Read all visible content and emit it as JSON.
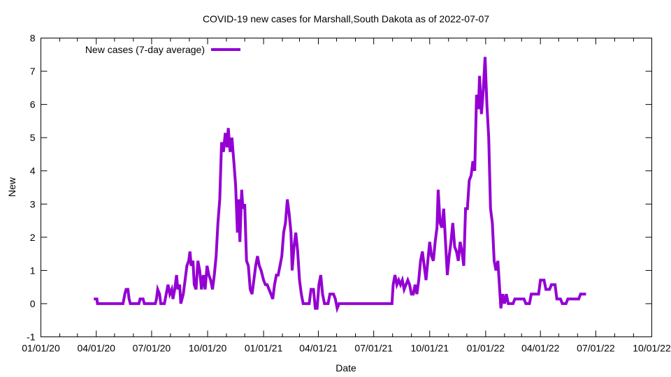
{
  "chart_data": {
    "type": "line",
    "title": "COVID-19 new cases for Marshall,South Dakota as of 2022-07-07",
    "xlabel": "Date",
    "ylabel": "New",
    "xlim": [
      "2020-01-01",
      "2022-10-01"
    ],
    "ylim": [
      -1,
      8
    ],
    "grid": false,
    "legend_position": "top-left",
    "y_ticks": [
      "-1",
      "0",
      "1",
      "2",
      "3",
      "4",
      "5",
      "6",
      "7",
      "8"
    ],
    "x_ticks": [
      {
        "date": "2020-01-01",
        "label": "01/01/20"
      },
      {
        "date": "2020-04-01",
        "label": "04/01/20"
      },
      {
        "date": "2020-07-01",
        "label": "07/01/20"
      },
      {
        "date": "2020-10-01",
        "label": "10/01/20"
      },
      {
        "date": "2021-01-01",
        "label": "01/01/21"
      },
      {
        "date": "2021-04-01",
        "label": "04/01/21"
      },
      {
        "date": "2021-07-01",
        "label": "07/01/21"
      },
      {
        "date": "2021-10-01",
        "label": "10/01/21"
      },
      {
        "date": "2022-01-01",
        "label": "01/01/22"
      },
      {
        "date": "2022-04-01",
        "label": "04/01/22"
      },
      {
        "date": "2022-07-01",
        "label": "07/01/22"
      },
      {
        "date": "2022-10-01",
        "label": "10/01/22"
      }
    ],
    "series": [
      {
        "name": "New cases (7-day average)",
        "color": "#9400d3",
        "points": [
          [
            "2020-03-28",
            0.14
          ],
          [
            "2020-04-02",
            0.14
          ],
          [
            "2020-04-03",
            0.0
          ],
          [
            "2020-05-15",
            0.0
          ],
          [
            "2020-05-18",
            0.29
          ],
          [
            "2020-05-20",
            0.43
          ],
          [
            "2020-05-23",
            0.43
          ],
          [
            "2020-05-25",
            0.14
          ],
          [
            "2020-05-27",
            0.0
          ],
          [
            "2020-06-10",
            0.0
          ],
          [
            "2020-06-12",
            0.14
          ],
          [
            "2020-06-17",
            0.14
          ],
          [
            "2020-06-19",
            0.0
          ],
          [
            "2020-07-07",
            0.0
          ],
          [
            "2020-07-09",
            0.14
          ],
          [
            "2020-07-11",
            0.43
          ],
          [
            "2020-07-14",
            0.29
          ],
          [
            "2020-07-16",
            0.0
          ],
          [
            "2020-07-22",
            0.0
          ],
          [
            "2020-07-25",
            0.29
          ],
          [
            "2020-07-28",
            0.57
          ],
          [
            "2020-07-31",
            0.29
          ],
          [
            "2020-08-03",
            0.43
          ],
          [
            "2020-08-05",
            0.14
          ],
          [
            "2020-08-08",
            0.43
          ],
          [
            "2020-08-11",
            0.86
          ],
          [
            "2020-08-13",
            0.43
          ],
          [
            "2020-08-16",
            0.57
          ],
          [
            "2020-08-18",
            0.0
          ],
          [
            "2020-08-22",
            0.29
          ],
          [
            "2020-08-25",
            0.71
          ],
          [
            "2020-08-28",
            1.14
          ],
          [
            "2020-08-31",
            1.29
          ],
          [
            "2020-09-02",
            1.57
          ],
          [
            "2020-09-04",
            1.14
          ],
          [
            "2020-09-07",
            1.29
          ],
          [
            "2020-09-09",
            0.57
          ],
          [
            "2020-09-12",
            0.43
          ],
          [
            "2020-09-15",
            1.29
          ],
          [
            "2020-09-18",
            1.0
          ],
          [
            "2020-09-21",
            0.43
          ],
          [
            "2020-09-24",
            0.86
          ],
          [
            "2020-09-27",
            0.43
          ],
          [
            "2020-09-30",
            1.14
          ],
          [
            "2020-10-03",
            0.86
          ],
          [
            "2020-10-06",
            0.71
          ],
          [
            "2020-10-09",
            0.43
          ],
          [
            "2020-10-12",
            0.86
          ],
          [
            "2020-10-15",
            1.43
          ],
          [
            "2020-10-18",
            2.43
          ],
          [
            "2020-10-21",
            3.14
          ],
          [
            "2020-10-24",
            4.86
          ],
          [
            "2020-10-27",
            4.57
          ],
          [
            "2020-10-30",
            5.14
          ],
          [
            "2020-11-02",
            4.71
          ],
          [
            "2020-11-04",
            5.29
          ],
          [
            "2020-11-07",
            4.57
          ],
          [
            "2020-11-10",
            5.0
          ],
          [
            "2020-11-13",
            4.29
          ],
          [
            "2020-11-16",
            3.57
          ],
          [
            "2020-11-19",
            2.14
          ],
          [
            "2020-11-21",
            3.14
          ],
          [
            "2020-11-23",
            1.86
          ],
          [
            "2020-11-26",
            3.43
          ],
          [
            "2020-11-28",
            2.86
          ],
          [
            "2020-12-01",
            3.0
          ],
          [
            "2020-12-04",
            1.29
          ],
          [
            "2020-12-07",
            1.14
          ],
          [
            "2020-12-10",
            0.43
          ],
          [
            "2020-12-13",
            0.29
          ],
          [
            "2020-12-16",
            0.71
          ],
          [
            "2020-12-19",
            1.14
          ],
          [
            "2020-12-22",
            1.43
          ],
          [
            "2020-12-25",
            1.14
          ],
          [
            "2020-12-28",
            1.0
          ],
          [
            "2021-01-01",
            0.71
          ],
          [
            "2021-01-04",
            0.57
          ],
          [
            "2021-01-07",
            0.57
          ],
          [
            "2021-01-10",
            0.43
          ],
          [
            "2021-01-13",
            0.29
          ],
          [
            "2021-01-16",
            0.14
          ],
          [
            "2021-01-19",
            0.57
          ],
          [
            "2021-01-22",
            0.86
          ],
          [
            "2021-01-25",
            0.86
          ],
          [
            "2021-01-28",
            1.14
          ],
          [
            "2021-01-31",
            1.43
          ],
          [
            "2021-02-03",
            2.14
          ],
          [
            "2021-02-06",
            2.43
          ],
          [
            "2021-02-09",
            3.14
          ],
          [
            "2021-02-12",
            2.71
          ],
          [
            "2021-02-15",
            2.14
          ],
          [
            "2021-02-17",
            1.0
          ],
          [
            "2021-02-20",
            1.71
          ],
          [
            "2021-02-23",
            2.14
          ],
          [
            "2021-02-26",
            1.57
          ],
          [
            "2021-03-01",
            0.71
          ],
          [
            "2021-03-04",
            0.29
          ],
          [
            "2021-03-07",
            0.0
          ],
          [
            "2021-03-17",
            0.0
          ],
          [
            "2021-03-20",
            0.43
          ],
          [
            "2021-03-24",
            0.43
          ],
          [
            "2021-03-27",
            -0.14
          ],
          [
            "2021-03-30",
            -0.14
          ],
          [
            "2021-04-02",
            0.57
          ],
          [
            "2021-04-05",
            0.86
          ],
          [
            "2021-04-08",
            0.29
          ],
          [
            "2021-04-11",
            0.0
          ],
          [
            "2021-04-17",
            0.0
          ],
          [
            "2021-04-20",
            0.29
          ],
          [
            "2021-04-26",
            0.29
          ],
          [
            "2021-04-29",
            0.14
          ],
          [
            "2021-05-02",
            -0.14
          ],
          [
            "2021-05-05",
            0.0
          ],
          [
            "2021-07-31",
            0.0
          ],
          [
            "2021-08-02",
            0.57
          ],
          [
            "2021-08-05",
            0.86
          ],
          [
            "2021-08-08",
            0.57
          ],
          [
            "2021-08-11",
            0.71
          ],
          [
            "2021-08-14",
            0.57
          ],
          [
            "2021-08-17",
            0.71
          ],
          [
            "2021-08-20",
            0.43
          ],
          [
            "2021-08-23",
            0.57
          ],
          [
            "2021-08-26",
            0.71
          ],
          [
            "2021-08-29",
            0.57
          ],
          [
            "2021-09-01",
            0.29
          ],
          [
            "2021-09-04",
            0.29
          ],
          [
            "2021-09-07",
            0.57
          ],
          [
            "2021-09-10",
            0.29
          ],
          [
            "2021-09-13",
            0.71
          ],
          [
            "2021-09-16",
            1.29
          ],
          [
            "2021-09-19",
            1.57
          ],
          [
            "2021-09-22",
            1.14
          ],
          [
            "2021-09-25",
            0.71
          ],
          [
            "2021-09-28",
            1.29
          ],
          [
            "2021-10-01",
            1.86
          ],
          [
            "2021-10-04",
            1.43
          ],
          [
            "2021-10-07",
            1.29
          ],
          [
            "2021-10-10",
            1.86
          ],
          [
            "2021-10-13",
            2.29
          ],
          [
            "2021-10-15",
            3.43
          ],
          [
            "2021-10-18",
            2.43
          ],
          [
            "2021-10-21",
            2.29
          ],
          [
            "2021-10-24",
            2.86
          ],
          [
            "2021-10-27",
            1.86
          ],
          [
            "2021-10-30",
            0.86
          ],
          [
            "2021-11-02",
            1.43
          ],
          [
            "2021-11-05",
            1.86
          ],
          [
            "2021-11-08",
            2.43
          ],
          [
            "2021-11-11",
            1.71
          ],
          [
            "2021-11-14",
            1.57
          ],
          [
            "2021-11-17",
            1.29
          ],
          [
            "2021-11-20",
            1.86
          ],
          [
            "2021-11-23",
            1.57
          ],
          [
            "2021-11-26",
            1.14
          ],
          [
            "2021-11-29",
            2.86
          ],
          [
            "2021-12-02",
            2.86
          ],
          [
            "2021-12-05",
            3.71
          ],
          [
            "2021-12-08",
            3.86
          ],
          [
            "2021-12-11",
            4.29
          ],
          [
            "2021-12-14",
            4.0
          ],
          [
            "2021-12-17",
            6.29
          ],
          [
            "2021-12-20",
            5.86
          ],
          [
            "2021-12-22",
            6.86
          ],
          [
            "2021-12-25",
            5.71
          ],
          [
            "2021-12-28",
            6.43
          ],
          [
            "2021-12-31",
            7.43
          ],
          [
            "2022-01-03",
            6.0
          ],
          [
            "2022-01-06",
            5.0
          ],
          [
            "2022-01-09",
            2.86
          ],
          [
            "2022-01-12",
            2.43
          ],
          [
            "2022-01-15",
            1.29
          ],
          [
            "2022-01-18",
            1.0
          ],
          [
            "2022-01-21",
            1.29
          ],
          [
            "2022-01-24",
            0.43
          ],
          [
            "2022-01-26",
            -0.14
          ],
          [
            "2022-01-29",
            0.29
          ],
          [
            "2022-02-01",
            0.0
          ],
          [
            "2022-02-04",
            0.29
          ],
          [
            "2022-02-07",
            0.0
          ],
          [
            "2022-02-15",
            0.0
          ],
          [
            "2022-02-18",
            0.14
          ],
          [
            "2022-03-05",
            0.14
          ],
          [
            "2022-03-08",
            0.0
          ],
          [
            "2022-03-14",
            0.0
          ],
          [
            "2022-03-17",
            0.29
          ],
          [
            "2022-03-29",
            0.29
          ],
          [
            "2022-04-01",
            0.71
          ],
          [
            "2022-04-07",
            0.71
          ],
          [
            "2022-04-10",
            0.43
          ],
          [
            "2022-04-16",
            0.43
          ],
          [
            "2022-04-19",
            0.57
          ],
          [
            "2022-04-25",
            0.57
          ],
          [
            "2022-04-28",
            0.14
          ],
          [
            "2022-05-04",
            0.14
          ],
          [
            "2022-05-07",
            0.0
          ],
          [
            "2022-05-13",
            0.0
          ],
          [
            "2022-05-16",
            0.14
          ],
          [
            "2022-06-03",
            0.14
          ],
          [
            "2022-06-06",
            0.29
          ],
          [
            "2022-06-15",
            0.29
          ]
        ]
      }
    ]
  }
}
